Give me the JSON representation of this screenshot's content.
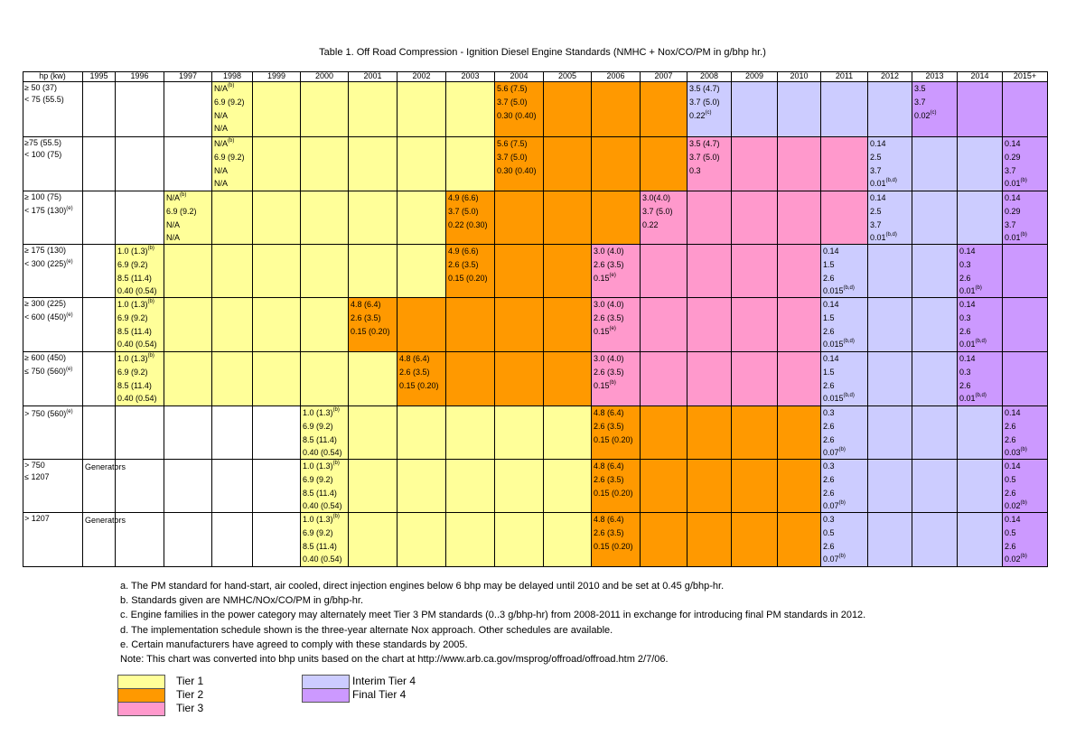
{
  "title": "Table 1.  Off Road Compression - Ignition Diesel Engine Standards (NMHC + Nox/CO/PM in g/bhp hr.)",
  "headers": [
    "hp (kw)",
    "1995",
    "1996",
    "1997",
    "1998",
    "1999",
    "2000",
    "2001",
    "2002",
    "2003",
    "2004",
    "2005",
    "2006",
    "2007",
    "2008",
    "2009",
    "2010",
    "2011",
    "2012",
    "2013",
    "2014",
    "2015+"
  ],
  "colors": {
    "tier1": "#ffff99",
    "tier2": "#ff9900",
    "tier3": "#ff99cc",
    "interim_tier4": "#ccccff",
    "final_tier4": "#cc99ff"
  },
  "rows": [
    {
      "label": [
        "≥ 50 (37)",
        "< 75 (55.5)"
      ],
      "label_sup": "",
      "fills": [
        "",
        "",
        "",
        "t1",
        "t1",
        "t1",
        "t1",
        "t1",
        "t1",
        "t2",
        "t2",
        "t2",
        "t2",
        "it4",
        "it4",
        "it4",
        "it4",
        "it4",
        "ft4",
        "ft4",
        "ft4"
      ],
      "values": {
        "3": [
          [
            "N/A",
            "(b)"
          ],
          [
            "6.9 (9.2)",
            ""
          ],
          [
            "N/A",
            ""
          ],
          [
            "N/A",
            ""
          ]
        ],
        "9": [
          [
            "5.6 (7.5)",
            ""
          ],
          [
            "3.7 (5.0)",
            ""
          ],
          [
            "0.30 (0.40)",
            ""
          ]
        ],
        "13": [
          [
            "3.5 (4.7)",
            ""
          ],
          [
            "3.7 (5.0)",
            ""
          ],
          [
            "0.22",
            "(c)"
          ]
        ],
        "18": [
          [
            "3.5",
            ""
          ],
          [
            "3.7",
            ""
          ],
          [
            "0.02",
            "(c)"
          ]
        ]
      }
    },
    {
      "label": [
        "≥75 (55.5)",
        "< 100 (75)"
      ],
      "label_sup": "",
      "fills": [
        "",
        "",
        "",
        "t1",
        "t1",
        "t1",
        "t1",
        "t1",
        "t1",
        "t2",
        "t2",
        "t2",
        "t2",
        "t3",
        "t3",
        "t3",
        "t3",
        "it4",
        "it4",
        "it4",
        "ft4"
      ],
      "values": {
        "3": [
          [
            "N/A",
            "(b)"
          ],
          [
            "6.9 (9.2)",
            ""
          ],
          [
            "N/A",
            ""
          ],
          [
            "N/A",
            ""
          ]
        ],
        "9": [
          [
            "5.6 (7.5)",
            ""
          ],
          [
            "3.7 (5.0)",
            ""
          ],
          [
            "0.30 (0.40)",
            ""
          ]
        ],
        "13": [
          [
            "3.5 (4.7)",
            ""
          ],
          [
            "3.7 (5.0)",
            ""
          ],
          [
            "0.3",
            ""
          ]
        ],
        "17": [
          [
            "0.14",
            ""
          ],
          [
            "2.5",
            ""
          ],
          [
            "3.7",
            ""
          ],
          [
            "0.01",
            "(b,d)"
          ]
        ],
        "20": [
          [
            "0.14",
            ""
          ],
          [
            "0.29",
            ""
          ],
          [
            "3.7",
            ""
          ],
          [
            "0.01",
            "(b)"
          ]
        ]
      }
    },
    {
      "label": [
        "≥ 100 (75)",
        "< 175 (130)"
      ],
      "label_sup": "(e)",
      "fills": [
        "",
        "",
        "t1",
        "t1",
        "t1",
        "t1",
        "t1",
        "t1",
        "t2",
        "t2",
        "t2",
        "t2",
        "t3",
        "t3",
        "t3",
        "t3",
        "t3",
        "it4",
        "it4",
        "it4",
        "ft4"
      ],
      "values": {
        "2": [
          [
            "N/A",
            "(b)"
          ],
          [
            "6.9 (9.2)",
            ""
          ],
          [
            "N/A",
            ""
          ],
          [
            "N/A",
            ""
          ]
        ],
        "8": [
          [
            "4.9 (6.6)",
            ""
          ],
          [
            "3.7 (5.0)",
            ""
          ],
          [
            "0.22 (0.30)",
            ""
          ]
        ],
        "12": [
          [
            "3.0(4.0)",
            ""
          ],
          [
            "3.7 (5.0)",
            ""
          ],
          [
            "0.22",
            ""
          ]
        ],
        "17": [
          [
            "0.14",
            ""
          ],
          [
            "2.5",
            ""
          ],
          [
            "3.7",
            ""
          ],
          [
            "0.01",
            "(b,d)"
          ]
        ],
        "20": [
          [
            "0.14",
            ""
          ],
          [
            "0.29",
            ""
          ],
          [
            "3.7",
            ""
          ],
          [
            "0.01",
            "(b)"
          ]
        ]
      }
    },
    {
      "label": [
        "≥ 175 (130)",
        "< 300 (225)"
      ],
      "label_sup": "(e)",
      "fills": [
        "",
        "t1",
        "t1",
        "t1",
        "t1",
        "t1",
        "t1",
        "t1",
        "t2",
        "t2",
        "t2",
        "t3",
        "t3",
        "t3",
        "t3",
        "t3",
        "it4",
        "it4",
        "it4",
        "ft4",
        "ft4"
      ],
      "values": {
        "1": [
          [
            "1.0 (1.3)",
            "(b)"
          ],
          [
            "6.9 (9.2)",
            ""
          ],
          [
            "8.5 (11.4)",
            ""
          ],
          [
            "0.40 (0.54)",
            ""
          ]
        ],
        "8": [
          [
            "4.9 (6.6)",
            ""
          ],
          [
            "2.6 (3.5)",
            ""
          ],
          [
            "0.15 (0.20)",
            ""
          ]
        ],
        "11": [
          [
            "3.0 (4.0)",
            ""
          ],
          [
            "2.6 (3.5)",
            ""
          ],
          [
            "0.15",
            "(e)"
          ]
        ],
        "16": [
          [
            "0.14",
            ""
          ],
          [
            "1.5",
            ""
          ],
          [
            "2.6",
            ""
          ],
          [
            "0.015",
            "(b,d)"
          ]
        ],
        "19": [
          [
            "0.14",
            ""
          ],
          [
            "0.3",
            ""
          ],
          [
            "2.6",
            ""
          ],
          [
            "0.01",
            "(b)"
          ]
        ]
      }
    },
    {
      "label": [
        "≥ 300 (225)",
        "< 600 (450)"
      ],
      "label_sup": "(e)",
      "fills": [
        "",
        "t1",
        "t1",
        "t1",
        "t1",
        "t1",
        "t2",
        "t2",
        "t2",
        "t2",
        "t2",
        "t3",
        "t3",
        "t3",
        "t3",
        "t3",
        "it4",
        "it4",
        "it4",
        "ft4",
        "ft4"
      ],
      "values": {
        "1": [
          [
            "1.0 (1.3)",
            "(b)"
          ],
          [
            "6.9 (9.2)",
            ""
          ],
          [
            "8.5 (11.4)",
            ""
          ],
          [
            "0.40 (0.54)",
            ""
          ]
        ],
        "6": [
          [
            "4.8 (6.4)",
            ""
          ],
          [
            "2.6 (3.5)",
            ""
          ],
          [
            "0.15 (0.20)",
            ""
          ]
        ],
        "11": [
          [
            "3.0 (4.0)",
            ""
          ],
          [
            "2.6 (3.5)",
            ""
          ],
          [
            "0.15",
            "(e)"
          ]
        ],
        "16": [
          [
            "0.14",
            ""
          ],
          [
            "1.5",
            ""
          ],
          [
            "2.6",
            ""
          ],
          [
            "0.015",
            "(b,d)"
          ]
        ],
        "19": [
          [
            "0.14",
            ""
          ],
          [
            "0.3",
            ""
          ],
          [
            "2.6",
            ""
          ],
          [
            "0.01",
            "(b,d)"
          ]
        ]
      }
    },
    {
      "label": [
        "≥ 600 (450)",
        "≤ 750 (560)"
      ],
      "label_sup": "(e)",
      "fills": [
        "",
        "t1",
        "t1",
        "t1",
        "t1",
        "t1",
        "t1",
        "t2",
        "t2",
        "t2",
        "t2",
        "t3",
        "t3",
        "t3",
        "t3",
        "t3",
        "it4",
        "it4",
        "it4",
        "ft4",
        "ft4"
      ],
      "values": {
        "1": [
          [
            "1.0 (1.3)",
            "(b)"
          ],
          [
            "6.9 (9.2)",
            ""
          ],
          [
            "8.5 (11.4)",
            ""
          ],
          [
            "0.40 (0.54)",
            ""
          ]
        ],
        "7": [
          [
            "4.8 (6.4)",
            ""
          ],
          [
            "2.6 (3.5)",
            ""
          ],
          [
            "0.15 (0.20)",
            ""
          ]
        ],
        "11": [
          [
            "3.0 (4.0)",
            ""
          ],
          [
            "2.6 (3.5)",
            ""
          ],
          [
            "0.15",
            "(b)"
          ]
        ],
        "16": [
          [
            "0.14",
            ""
          ],
          [
            "1.5",
            ""
          ],
          [
            "2.6",
            ""
          ],
          [
            "0.015",
            "(b,d)"
          ]
        ],
        "19": [
          [
            "0.14",
            ""
          ],
          [
            "0.3",
            ""
          ],
          [
            "2.6",
            ""
          ],
          [
            "0.01",
            "(b,d)"
          ]
        ]
      }
    },
    {
      "label": [
        "> 750 (560)"
      ],
      "label_sup": "(e)",
      "fills": [
        "",
        "",
        "",
        "",
        "",
        "t1",
        "t1",
        "t1",
        "t1",
        "t1",
        "t1",
        "t2",
        "t2",
        "t2",
        "t2",
        "t2",
        "it4",
        "it4",
        "it4",
        "it4",
        "ft4"
      ],
      "values": {
        "5": [
          [
            "1.0 (1.3)",
            "(b)"
          ],
          [
            "6.9 (9.2)",
            ""
          ],
          [
            "8.5 (11.4)",
            ""
          ],
          [
            "0.40 (0.54)",
            ""
          ]
        ],
        "11": [
          [
            "4.8 (6.4)",
            ""
          ],
          [
            "2.6 (3.5)",
            ""
          ],
          [
            "0.15 (0.20)",
            ""
          ]
        ],
        "16": [
          [
            "0.3",
            ""
          ],
          [
            "2.6",
            ""
          ],
          [
            "2.6",
            ""
          ],
          [
            "0.07",
            "(b)"
          ]
        ],
        "20": [
          [
            "0.14",
            ""
          ],
          [
            "2.6",
            ""
          ],
          [
            "2.6",
            ""
          ],
          [
            "0.03",
            "(b)"
          ]
        ]
      }
    },
    {
      "label": [
        "> 750",
        "≤ 1207"
      ],
      "label_sup": "",
      "note": "Generators",
      "fills": [
        "",
        "",
        "",
        "",
        "",
        "t1",
        "t1",
        "t1",
        "t1",
        "t1",
        "t1",
        "t2",
        "t2",
        "t2",
        "t2",
        "t2",
        "it4",
        "it4",
        "it4",
        "it4",
        "ft4"
      ],
      "values": {
        "5": [
          [
            "1.0 (1.3)",
            "(b)"
          ],
          [
            "6.9 (9.2)",
            ""
          ],
          [
            "8.5 (11.4)",
            ""
          ],
          [
            "0.40 (0.54)",
            ""
          ]
        ],
        "11": [
          [
            "4.8 (6.4)",
            ""
          ],
          [
            "2.6 (3.5)",
            ""
          ],
          [
            "0.15 (0.20)",
            ""
          ]
        ],
        "16": [
          [
            "0.3",
            ""
          ],
          [
            "2.6",
            ""
          ],
          [
            "2.6",
            ""
          ],
          [
            "0.07",
            "(b)"
          ]
        ],
        "20": [
          [
            "0.14",
            ""
          ],
          [
            "0.5",
            ""
          ],
          [
            "2.6",
            ""
          ],
          [
            "0.02",
            "(b)"
          ]
        ]
      }
    },
    {
      "label": [
        "> 1207"
      ],
      "label_sup": "",
      "note": "Generators",
      "fills": [
        "",
        "",
        "",
        "",
        "",
        "t1",
        "t1",
        "t1",
        "t1",
        "t1",
        "t1",
        "t2",
        "t2",
        "t2",
        "t2",
        "t2",
        "it4",
        "it4",
        "it4",
        "it4",
        "ft4"
      ],
      "values": {
        "5": [
          [
            "1.0 (1.3)",
            "(b)"
          ],
          [
            "6.9 (9.2)",
            ""
          ],
          [
            "8.5 (11.4)",
            ""
          ],
          [
            "0.40 (0.54)",
            ""
          ]
        ],
        "11": [
          [
            "4.8 (6.4)",
            ""
          ],
          [
            "2.6 (3.5)",
            ""
          ],
          [
            "0.15 (0.20)",
            ""
          ]
        ],
        "16": [
          [
            "0.3",
            ""
          ],
          [
            "0.5",
            ""
          ],
          [
            "2.6",
            ""
          ],
          [
            "0.07",
            "(b)"
          ]
        ],
        "20": [
          [
            "0.14",
            ""
          ],
          [
            "0.5",
            ""
          ],
          [
            "2.6",
            ""
          ],
          [
            "0.02",
            "(b)"
          ]
        ]
      }
    }
  ],
  "notes": [
    "a. The PM standard for hand-start, air cooled, direct injection engines below 6 bhp may be delayed until 2010 and be set at 0.45 g/bhp-hr.",
    "b. Standards given are NMHC/NOx/CO/PM in g/bhp-hr.",
    "c. Engine families in the power category may alternately meet Tier 3 PM standards (0..3 g/bhp-hr) from 2008-2011 in exchange for introducing final PM standards in 2012.",
    "d. The implementation schedule shown is the three-year alternate Nox approach. Other schedules are available.",
    "e. Certain manufacturers have agreed to comply with these standards by 2005.",
    "Note:  This chart was converted into bhp units based on the chart at http://www.arb.ca.gov/msprog/offroad/offroad.htm 2/7/06."
  ],
  "legend": {
    "tier1": "Tier 1",
    "tier2": "Tier 2",
    "tier3": "Tier 3",
    "interim_tier4": "Interim Tier 4",
    "final_tier4": "Final Tier 4"
  }
}
